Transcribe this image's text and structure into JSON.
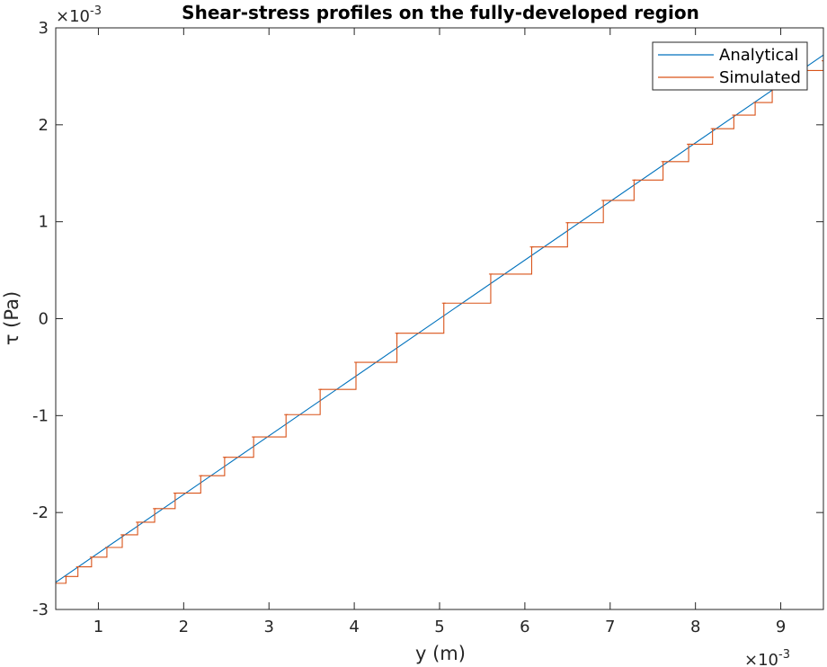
{
  "chart_data": {
    "type": "line",
    "title": "Shear-stress profiles on the fully-developed region",
    "xlabel": "y (m)",
    "ylabel": "τ (Pa)",
    "x_multiplier": "×10",
    "x_exponent": "-3",
    "y_multiplier": "×10",
    "y_exponent": "-3",
    "xlim": [
      0.5,
      9.5
    ],
    "ylim": [
      -3,
      3
    ],
    "x_ticks": [
      1,
      2,
      3,
      4,
      5,
      6,
      7,
      8,
      9
    ],
    "y_ticks": [
      -3,
      -2,
      -1,
      0,
      1,
      2,
      3
    ],
    "grid": false,
    "legend_position": "top-right",
    "series": [
      {
        "name": "Analytical",
        "color": "#0072BD",
        "x": [
          0.5,
          9.5
        ],
        "y": [
          -2.72,
          2.72
        ]
      },
      {
        "name": "Simulated",
        "color": "#D95319",
        "steps_x": [
          0.5,
          0.62,
          0.76,
          0.92,
          1.1,
          1.28,
          1.46,
          1.66,
          1.9,
          2.2,
          2.48,
          2.82,
          3.2,
          3.6,
          4.02,
          4.5,
          5.05,
          5.6,
          6.08,
          6.5,
          6.92,
          7.28,
          7.62,
          7.92,
          8.2,
          8.45,
          8.7,
          8.9,
          9.1,
          9.3,
          9.5
        ],
        "steps_y": [
          -2.73,
          -2.66,
          -2.56,
          -2.46,
          -2.36,
          -2.23,
          -2.1,
          -1.96,
          -1.8,
          -1.62,
          -1.43,
          -1.22,
          -0.99,
          -0.73,
          -0.45,
          -0.15,
          0.16,
          0.46,
          0.74,
          0.99,
          1.22,
          1.43,
          1.62,
          1.8,
          1.96,
          2.1,
          2.23,
          2.36,
          2.46,
          2.56,
          2.66
        ]
      }
    ]
  }
}
